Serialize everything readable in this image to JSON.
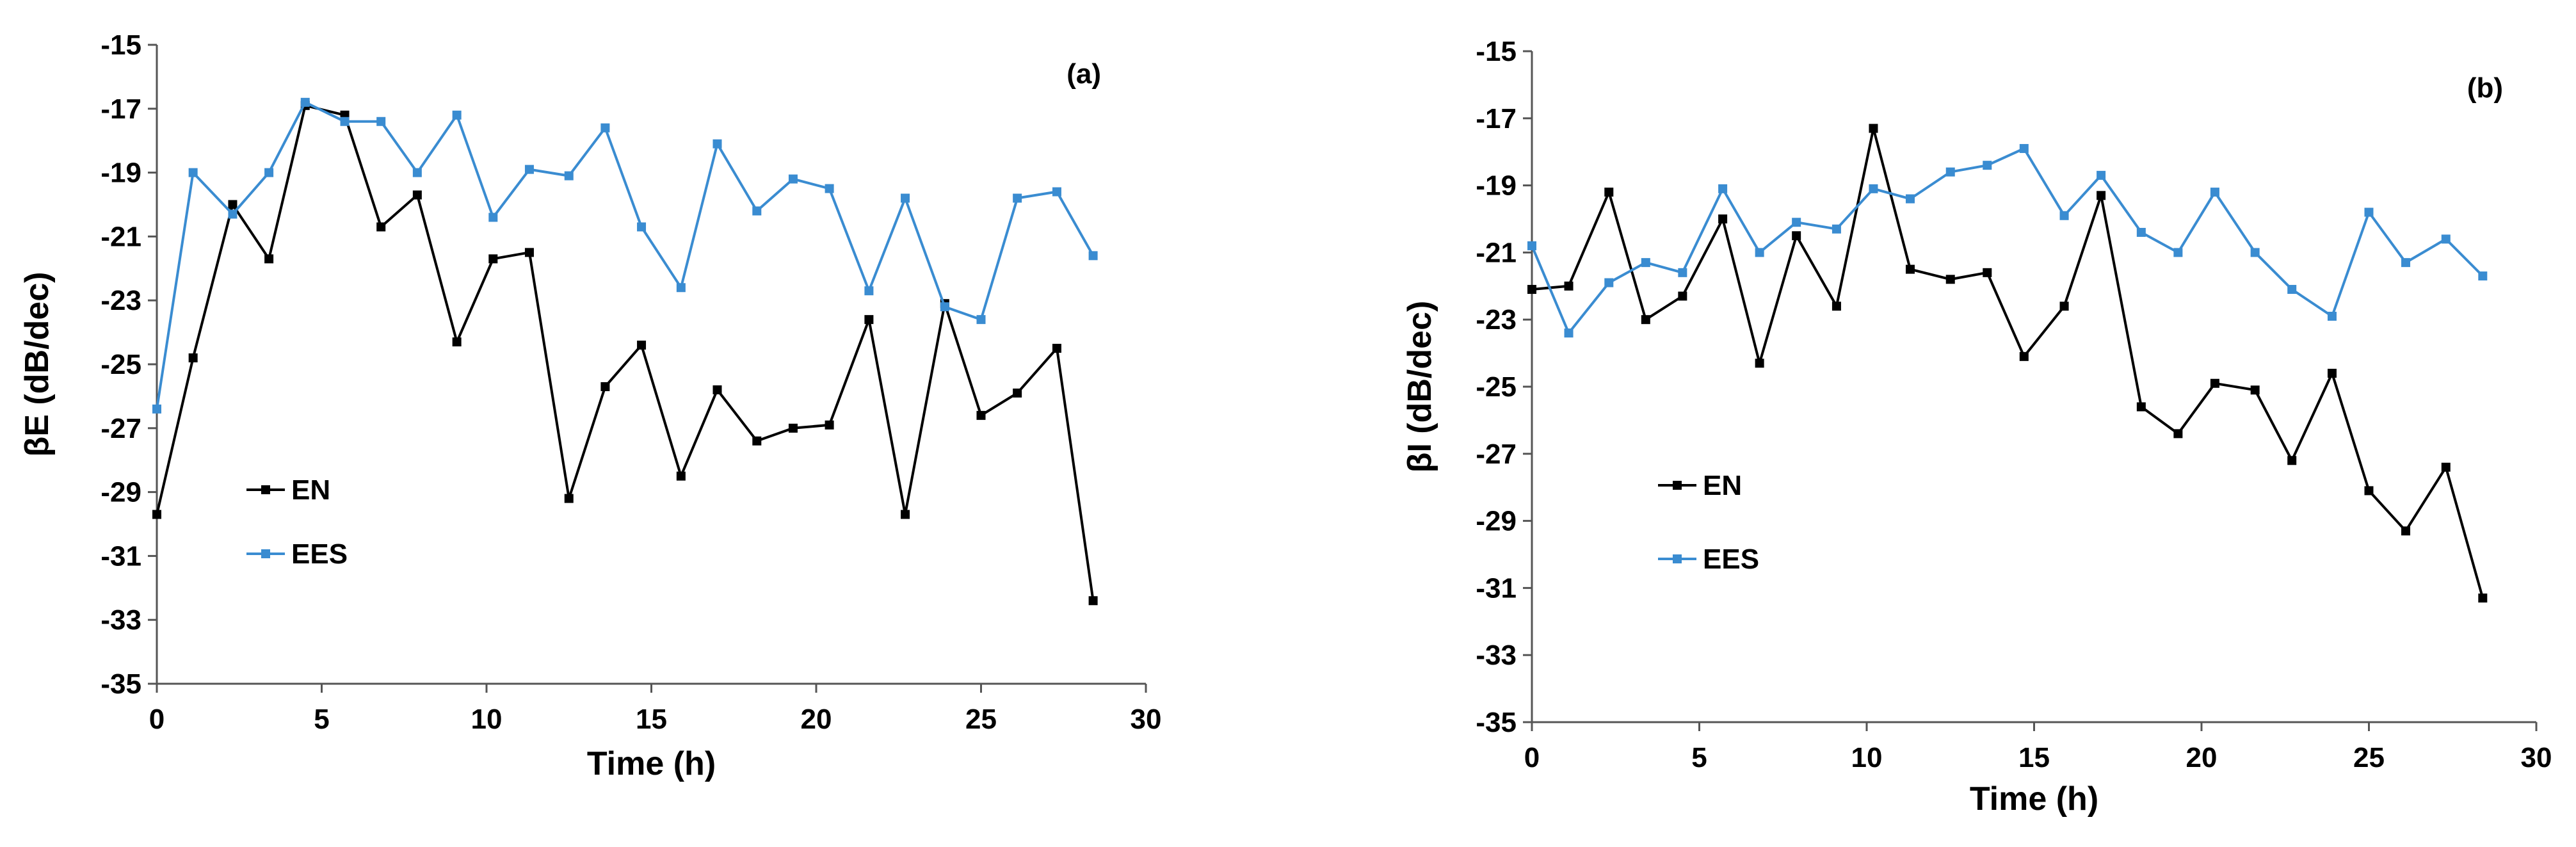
{
  "colors": {
    "EN": "#000000",
    "EES": "#3a8cd1"
  },
  "chart_data": [
    {
      "type": "line",
      "panel_label": "(a)",
      "title": "",
      "xlabel": "Time (h)",
      "ylabel": "βE (dB/dec)",
      "xlim": [
        0,
        30
      ],
      "ylim": [
        -35,
        -15
      ],
      "xticks": [
        0,
        5,
        10,
        15,
        20,
        25,
        30
      ],
      "yticks": [
        -35,
        -33,
        -31,
        -29,
        -27,
        -25,
        -23,
        -21,
        -19,
        -17,
        -15
      ],
      "legend_position": "lower-left",
      "series": [
        {
          "name": "EN",
          "x": [
            0,
            1.1,
            2.3,
            3.4,
            4.5,
            5.7,
            6.8,
            7.9,
            9.1,
            10.2,
            11.3,
            12.5,
            13.6,
            14.7,
            15.9,
            17.0,
            18.2,
            19.3,
            20.4,
            21.6,
            22.7,
            23.9,
            25.0,
            26.1,
            27.3,
            28.4
          ],
          "values": [
            -29.7,
            -24.8,
            -20.0,
            -21.7,
            -16.9,
            -17.2,
            -20.7,
            -19.7,
            -24.3,
            -21.7,
            -21.5,
            -29.2,
            -25.7,
            -24.4,
            -28.5,
            -25.8,
            -27.4,
            -27.0,
            -26.9,
            -23.6,
            -29.7,
            -23.1,
            -26.6,
            -25.9,
            -24.5,
            -32.4
          ]
        },
        {
          "name": "EES",
          "x": [
            0,
            1.1,
            2.3,
            3.4,
            4.5,
            5.7,
            6.8,
            7.9,
            9.1,
            10.2,
            11.3,
            12.5,
            13.6,
            14.7,
            15.9,
            17.0,
            18.2,
            19.3,
            20.4,
            21.6,
            22.7,
            23.9,
            25.0,
            26.1,
            27.3,
            28.4
          ],
          "values": [
            -26.4,
            -19.0,
            -20.3,
            -19.0,
            -16.8,
            -17.4,
            -17.4,
            -19.0,
            -17.2,
            -20.4,
            -18.9,
            -19.1,
            -17.6,
            -20.7,
            -22.6,
            -18.1,
            -20.2,
            -19.2,
            -19.5,
            -22.7,
            -19.8,
            -23.2,
            -23.6,
            -19.8,
            -19.6,
            -21.6
          ]
        }
      ]
    },
    {
      "type": "line",
      "panel_label": "(b)",
      "title": "",
      "xlabel": "Time (h)",
      "ylabel": "βI (dB/dec)",
      "xlim": [
        0,
        30
      ],
      "ylim": [
        -35,
        -15
      ],
      "xticks": [
        0,
        5,
        10,
        15,
        20,
        25,
        30
      ],
      "yticks": [
        -35,
        -33,
        -31,
        -29,
        -27,
        -25,
        -23,
        -21,
        -19,
        -17,
        -15
      ],
      "legend_position": "lower-left",
      "series": [
        {
          "name": "EN",
          "x": [
            0,
            1.1,
            2.3,
            3.4,
            4.5,
            5.7,
            6.8,
            7.9,
            9.1,
            10.2,
            11.3,
            12.5,
            13.6,
            14.7,
            15.9,
            17.0,
            18.2,
            19.3,
            20.4,
            21.6,
            22.7,
            23.9,
            25.0,
            26.1,
            27.3,
            28.4
          ],
          "values": [
            -22.1,
            -22.0,
            -19.2,
            -23.0,
            -22.3,
            -20.0,
            -24.3,
            -20.5,
            -22.6,
            -17.3,
            -21.5,
            -21.8,
            -21.6,
            -24.1,
            -22.6,
            -19.3,
            -25.6,
            -26.4,
            -24.9,
            -25.1,
            -27.2,
            -24.6,
            -28.1,
            -29.3,
            -27.4,
            -31.3
          ]
        },
        {
          "name": "EES",
          "x": [
            0,
            1.1,
            2.3,
            3.4,
            4.5,
            5.7,
            6.8,
            7.9,
            9.1,
            10.2,
            11.3,
            12.5,
            13.6,
            14.7,
            15.9,
            17.0,
            18.2,
            19.3,
            20.4,
            21.6,
            22.7,
            23.9,
            25.0,
            26.1,
            27.3,
            28.4
          ],
          "values": [
            -20.8,
            -23.4,
            -21.9,
            -21.3,
            -21.6,
            -19.1,
            -21.0,
            -20.1,
            -20.3,
            -19.1,
            -19.4,
            -18.6,
            -18.4,
            -17.9,
            -19.9,
            -18.7,
            -20.4,
            -21.0,
            -19.2,
            -21.0,
            -22.1,
            -22.9,
            -19.8,
            -21.3,
            -20.6,
            -21.7
          ]
        }
      ]
    }
  ]
}
